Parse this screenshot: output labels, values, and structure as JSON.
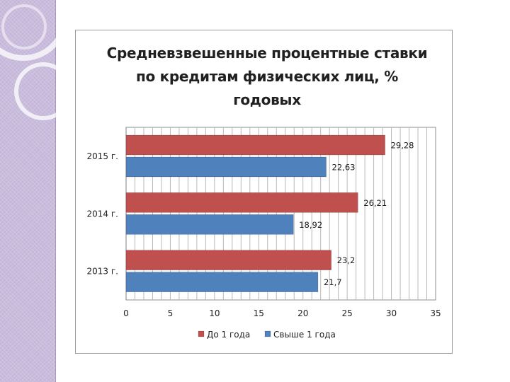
{
  "chart_data": {
    "type": "bar",
    "orientation": "horizontal",
    "title": "Средневзвешенные процентные ставки по кредитам физических лиц, % годовых",
    "categories": [
      "2015 г.",
      "2014 г.",
      "2013 г."
    ],
    "series": [
      {
        "name": "До 1 года",
        "color": "#c0504d",
        "values": [
          29.28,
          26.21,
          23.2
        ],
        "labels": [
          "29,28",
          "26,21",
          "23,2"
        ]
      },
      {
        "name": "Свыше 1 года",
        "color": "#4f81bd",
        "values": [
          22.63,
          18.92,
          21.7
        ],
        "labels": [
          "22,63",
          "18,92",
          "21,7"
        ]
      }
    ],
    "xlim": [
      0,
      35
    ],
    "xticks": [
      0,
      5,
      10,
      15,
      20,
      25,
      30,
      35
    ],
    "xlabel": "",
    "ylabel": "",
    "grid": true,
    "legend": "bottom"
  }
}
